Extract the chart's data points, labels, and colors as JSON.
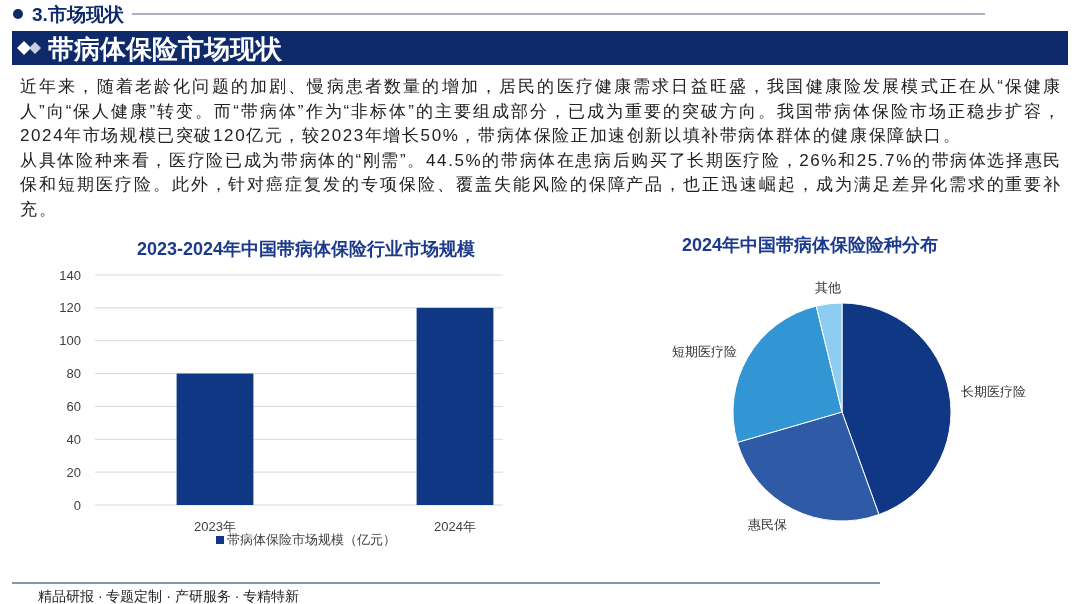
{
  "chart_data": [
    {
      "type": "other",
      "subtitle": "3.市场现状",
      "title": "带病体保险市场现状",
      "annotations": [
        "近年来，随着老龄化问题的加剧、慢病患者数量的增加，居民的医疗健康需求日益旺盛，我国健康险发展模式正在从“保健康人”向“保人健康”转变。而“带病体”作为“非标体”的主要组成部分，已成为重要的突破方向。我国带病体保险市场正稳步扩容，2024年市场规模已突破120亿元，较2023年增长50%，带病体保险正加速创新以填补带病体群体的健康保障缺口。",
        "从具体险种来看，医疗险已成为带病体的“刚需”。44.5%的带病体在患病后购买了长期医疗险，26%和25.7%的带病体选择惠民保和短期医疗险。此外，针对癌症复发的专项保险、覆盖失能风险的保障产品，也正迅速崛起，成为满足差异化需求的重要补充。",
        "精品研报 · 专题定制 · 产研服务 · 专精特新"
      ]
    },
    {
      "type": "bar",
      "title": "2023-2024年中国带病体保险行业市场规模",
      "categories": [
        "2023年",
        "2024年"
      ],
      "series": [
        {
          "name": "带病体保险市场规模（亿元）",
          "color": "#0f3784",
          "values": [
            80,
            120
          ]
        }
      ],
      "ylim": [
        0,
        140
      ],
      "yticks": [
        0,
        20,
        40,
        60,
        80,
        100,
        120,
        140
      ],
      "grid": "y",
      "legend": "bottom"
    },
    {
      "type": "pie",
      "title": "2024年中国带病体保险险种分布",
      "categories": [
        "长期医疗险",
        "惠民保",
        "短期医疗险",
        "其他"
      ],
      "values": [
        44.5,
        26,
        25.7,
        3.8
      ],
      "colors": [
        "#0f3784",
        "#2f5aa6",
        "#3196d3",
        "#8ecdf2"
      ]
    }
  ]
}
